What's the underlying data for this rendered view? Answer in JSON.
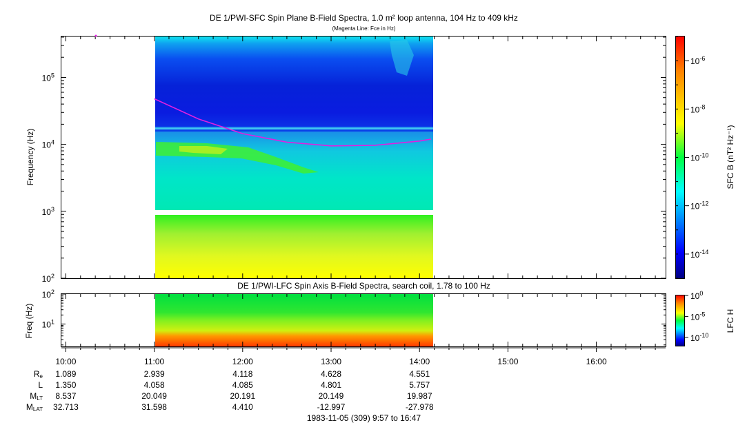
{
  "top_title": "DE 1/PWI-SFC  Spin Plane B-Field Spectra, 1.0 m² loop antenna, 104 Hz to 409 kHz",
  "top_subtitle": "(Magenta Line: Fce in Hz)",
  "bottom_title": "DE 1/PWI-LFC  Spin Axis B-Field Spectra, search coil, 1.78 to 100 Hz",
  "top_ylabel": "Frequency (Hz)",
  "bottom_ylabel": "Freq (Hz)",
  "top_cbar_label": "SFC B (nT² Hz⁻¹)",
  "bottom_cbar_label": "LFC H",
  "footer": "1983-11-05 (309) 9:57 to 16:47",
  "colors": {
    "magenta": "#e020e0",
    "background": "#ffffff"
  },
  "chart_data": [
    {
      "type": "heatmap",
      "title": "DE 1/PWI-SFC  Spin Plane B-Field Spectra, 1.0 m² loop antenna, 104 Hz to 409 kHz",
      "ylabel": "Frequency (Hz)",
      "yscale": "log",
      "ylim": [
        100,
        409000
      ],
      "y_ticks": [
        {
          "base": "10",
          "exp": "2"
        },
        {
          "base": "10",
          "exp": "3"
        },
        {
          "base": "10",
          "exp": "4"
        },
        {
          "base": "10",
          "exp": "5"
        }
      ],
      "x_ticks": [
        "10:00",
        "11:00",
        "12:00",
        "13:00",
        "14:00",
        "15:00",
        "16:00"
      ],
      "xlim_hours": [
        9.95,
        16.783
      ],
      "data_coverage_hours": [
        11.0,
        14.13
      ],
      "colorbar": {
        "label": "SFC B (nT² Hz⁻¹)",
        "scale": "log",
        "range": [
          1e-15,
          1e-05
        ],
        "ticks": [
          {
            "base": "10",
            "exp": "-6"
          },
          {
            "base": "10",
            "exp": "-8"
          },
          {
            "base": "10",
            "exp": "-10"
          },
          {
            "base": "10",
            "exp": "-12"
          },
          {
            "base": "10",
            "exp": "-14"
          }
        ]
      },
      "fce_line": {
        "name": "Fce in Hz",
        "x_hours": [
          11.0,
          11.5,
          12.0,
          12.5,
          13.0,
          13.5,
          14.0,
          14.13
        ],
        "y_hz": [
          48000,
          24000,
          14500,
          10800,
          9500,
          9700,
          11200,
          12000
        ]
      }
    },
    {
      "type": "heatmap",
      "title": "DE 1/PWI-LFC  Spin Axis B-Field Spectra, search coil, 1.78 to 100 Hz",
      "ylabel": "Freq (Hz)",
      "yscale": "log",
      "ylim": [
        1.78,
        100
      ],
      "y_ticks": [
        {
          "base": "10",
          "exp": "1"
        },
        {
          "base": "10",
          "exp": "2"
        }
      ],
      "x_ticks": [
        "10:00",
        "11:00",
        "12:00",
        "13:00",
        "14:00",
        "15:00",
        "16:00"
      ],
      "data_coverage_hours": [
        11.0,
        14.13
      ],
      "colorbar": {
        "label": "LFC H",
        "scale": "log",
        "range": [
          1e-12,
          1
        ],
        "ticks": [
          {
            "base": "10",
            "exp": "0"
          },
          {
            "base": "10",
            "exp": "-5"
          },
          {
            "base": "10",
            "exp": "-10"
          }
        ]
      }
    }
  ],
  "ephemeris": {
    "row_labels": [
      {
        "main": "R",
        "sub": "e"
      },
      {
        "main": "L",
        "sub": ""
      },
      {
        "main": "M",
        "sub": "LT"
      },
      {
        "main": "M",
        "sub": "LAT"
      }
    ],
    "columns": [
      {
        "time": "10:00",
        "values": [
          "1.089",
          "1.350",
          "8.537",
          "32.713"
        ]
      },
      {
        "time": "11:00",
        "values": [
          "2.939",
          "4.058",
          "20.049",
          "31.598"
        ]
      },
      {
        "time": "12:00",
        "values": [
          "4.118",
          "4.085",
          "20.191",
          "4.410"
        ]
      },
      {
        "time": "13:00",
        "values": [
          "4.628",
          "4.801",
          "20.149",
          "-12.997"
        ]
      },
      {
        "time": "14:00",
        "values": [
          "4.551",
          "5.757",
          "19.987",
          "-27.978"
        ]
      }
    ]
  }
}
